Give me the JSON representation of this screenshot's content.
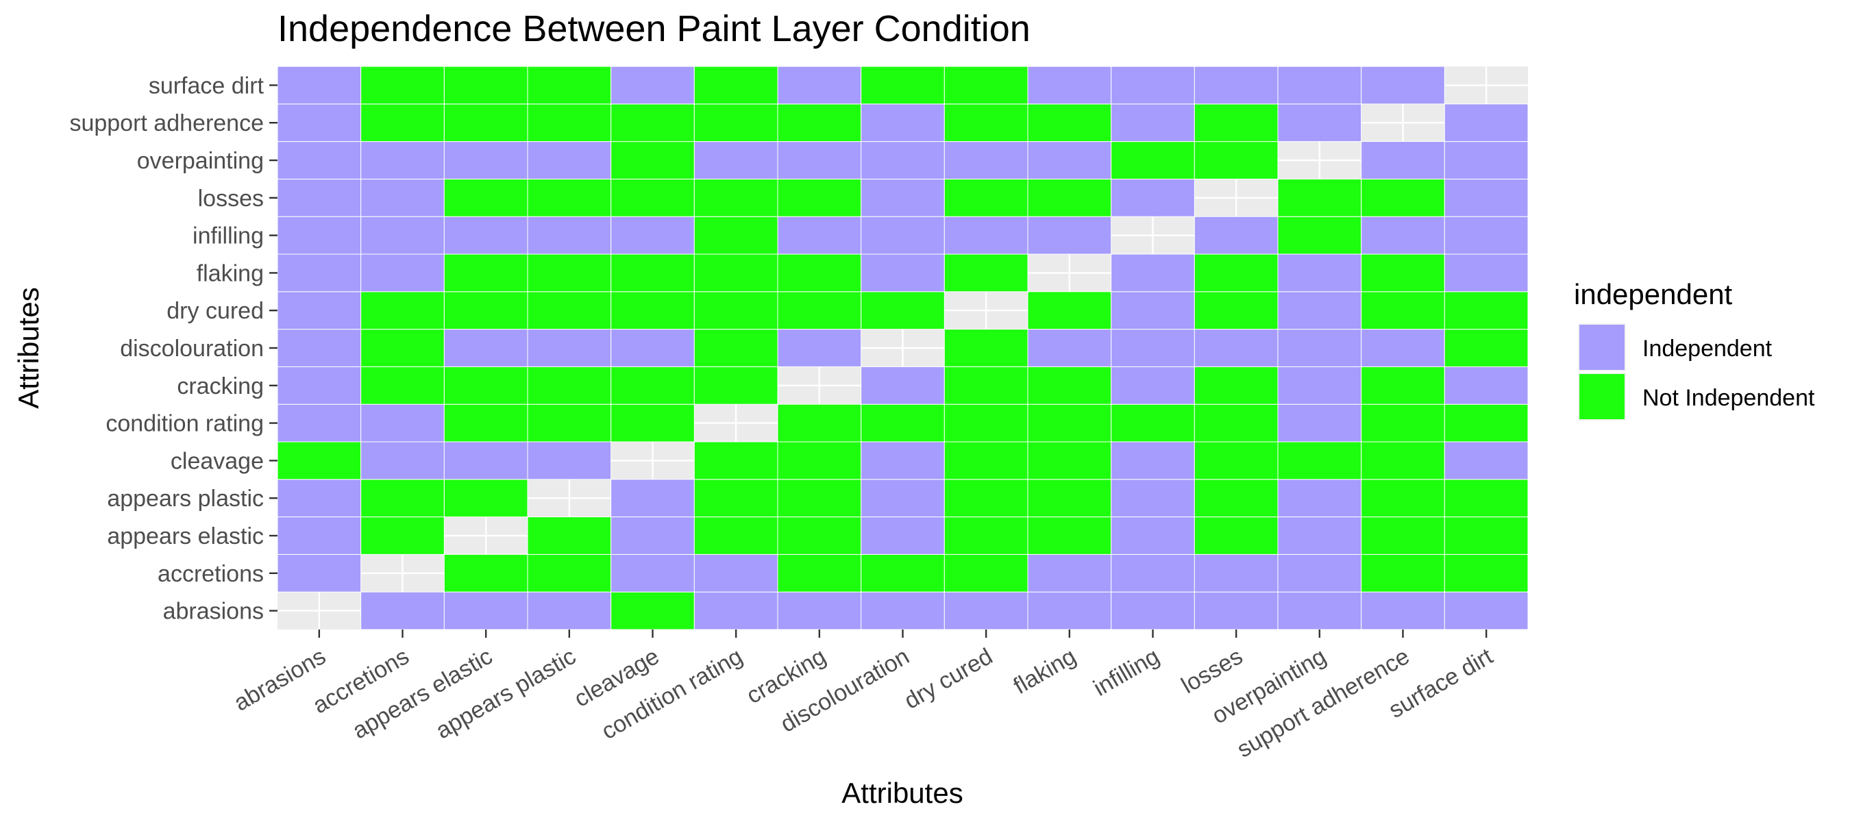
{
  "chart_data": {
    "type": "heatmap",
    "title": "Independence Between Paint Layer Condition",
    "xlabel": "Attributes",
    "ylabel": "Attributes",
    "x": [
      "abrasions",
      "accretions",
      "appears elastic",
      "appears plastic",
      "cleavage",
      "condition rating",
      "cracking",
      "discolouration",
      "dry cured",
      "flaking",
      "infilling",
      "losses",
      "overpainting",
      "support adherence",
      "surface dirt"
    ],
    "y": [
      "abrasions",
      "accretions",
      "appears elastic",
      "appears plastic",
      "cleavage",
      "condition rating",
      "cracking",
      "discolouration",
      "dry cured",
      "flaking",
      "infilling",
      "losses",
      "overpainting",
      "support adherence",
      "surface dirt"
    ],
    "legend": {
      "title": "independent",
      "position": "right",
      "entries": [
        {
          "key": "I",
          "label": "Independent",
          "color": "#a59cfd"
        },
        {
          "key": "N",
          "label": "Not Independent",
          "color": "#1dfd0e"
        }
      ]
    },
    "missing_color": "#ebebeb",
    "grid": true,
    "cells": [
      [
        "",
        "I",
        "I",
        "I",
        "N",
        "I",
        "I",
        "I",
        "I",
        "I",
        "I",
        "I",
        "I",
        "I",
        "I"
      ],
      [
        "I",
        "",
        "N",
        "N",
        "I",
        "I",
        "N",
        "N",
        "N",
        "I",
        "I",
        "I",
        "I",
        "N",
        "N"
      ],
      [
        "I",
        "N",
        "",
        "N",
        "I",
        "N",
        "N",
        "I",
        "N",
        "N",
        "I",
        "N",
        "I",
        "N",
        "N"
      ],
      [
        "I",
        "N",
        "N",
        "",
        "I",
        "N",
        "N",
        "I",
        "N",
        "N",
        "I",
        "N",
        "I",
        "N",
        "N"
      ],
      [
        "N",
        "I",
        "I",
        "I",
        "",
        "N",
        "N",
        "I",
        "N",
        "N",
        "I",
        "N",
        "N",
        "N",
        "I"
      ],
      [
        "I",
        "I",
        "N",
        "N",
        "N",
        "",
        "N",
        "N",
        "N",
        "N",
        "N",
        "N",
        "I",
        "N",
        "N"
      ],
      [
        "I",
        "N",
        "N",
        "N",
        "N",
        "N",
        "",
        "I",
        "N",
        "N",
        "I",
        "N",
        "I",
        "N",
        "I"
      ],
      [
        "I",
        "N",
        "I",
        "I",
        "I",
        "N",
        "I",
        "",
        "N",
        "I",
        "I",
        "I",
        "I",
        "I",
        "N"
      ],
      [
        "I",
        "N",
        "N",
        "N",
        "N",
        "N",
        "N",
        "N",
        "",
        "N",
        "I",
        "N",
        "I",
        "N",
        "N"
      ],
      [
        "I",
        "I",
        "N",
        "N",
        "N",
        "N",
        "N",
        "I",
        "N",
        "",
        "I",
        "N",
        "I",
        "N",
        "I"
      ],
      [
        "I",
        "I",
        "I",
        "I",
        "I",
        "N",
        "I",
        "I",
        "I",
        "I",
        "",
        "I",
        "N",
        "I",
        "I"
      ],
      [
        "I",
        "I",
        "N",
        "N",
        "N",
        "N",
        "N",
        "I",
        "N",
        "N",
        "I",
        "",
        "N",
        "N",
        "I"
      ],
      [
        "I",
        "I",
        "I",
        "I",
        "N",
        "I",
        "I",
        "I",
        "I",
        "I",
        "N",
        "N",
        "",
        "I",
        "I"
      ],
      [
        "I",
        "N",
        "N",
        "N",
        "N",
        "N",
        "N",
        "I",
        "N",
        "N",
        "I",
        "N",
        "I",
        "",
        "I"
      ],
      [
        "I",
        "N",
        "N",
        "N",
        "I",
        "N",
        "I",
        "N",
        "N",
        "I",
        "I",
        "I",
        "I",
        "I",
        ""
      ]
    ]
  }
}
